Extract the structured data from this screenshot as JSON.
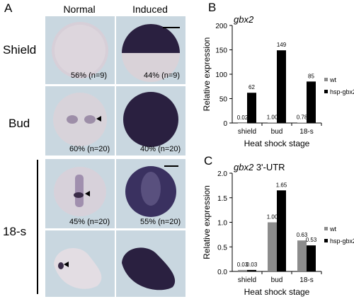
{
  "panels": {
    "a": "A",
    "b": "B",
    "c": "C"
  },
  "columns": {
    "normal": "Normal",
    "induced": "Induced"
  },
  "rows": {
    "shield": "Shield",
    "bud": "Bud",
    "s18": "18-s"
  },
  "percentages": {
    "shield_normal": "56% (n=9)",
    "shield_induced": "44% (n=9)",
    "bud_normal": "60% (n=20)",
    "bud_induced": "40% (n=20)",
    "s18_normal": "45% (n=20)",
    "s18_induced": "55% (n=20)"
  },
  "colors": {
    "wt": "#8c8c8c",
    "hsp": "#000000",
    "tile_bg": "#c9d7e0",
    "stain": "#2a2040"
  },
  "chart_data": [
    {
      "type": "bar",
      "title_italic": "gbx2",
      "title_rest": "",
      "ylabel": "Relative expression",
      "xlabel": "Heat shock stage",
      "categories": [
        "shield",
        "bud",
        "18-s"
      ],
      "ylim": [
        0,
        200
      ],
      "yticks": [
        0,
        50,
        100,
        150,
        200
      ],
      "series": [
        {
          "name": "wt",
          "values": [
            0.02,
            1.0,
            0.78
          ],
          "labels": [
            "0.02",
            "1.00",
            "0.78"
          ]
        },
        {
          "name": "hsp-gbx2",
          "values": [
            62,
            149,
            85
          ],
          "labels": [
            "62",
            "149",
            "85"
          ]
        }
      ]
    },
    {
      "type": "bar",
      "title_italic": "gbx2",
      "title_rest": " 3'-UTR",
      "ylabel": "Relative expression",
      "xlabel": "Heat shock stage",
      "categories": [
        "shield",
        "bud",
        "18-s"
      ],
      "ylim": [
        0,
        2
      ],
      "yticks": [
        "0.0",
        "0.5",
        "1.0",
        "1.5",
        "2.0"
      ],
      "series": [
        {
          "name": "wt",
          "values": [
            0.03,
            1.0,
            0.63
          ],
          "labels": [
            "0.03",
            "1.00",
            "0.63"
          ]
        },
        {
          "name": "hsp-gbx2",
          "values": [
            0.03,
            1.65,
            0.53
          ],
          "labels": [
            "0.03",
            "1.65",
            "0.53"
          ]
        }
      ]
    }
  ]
}
